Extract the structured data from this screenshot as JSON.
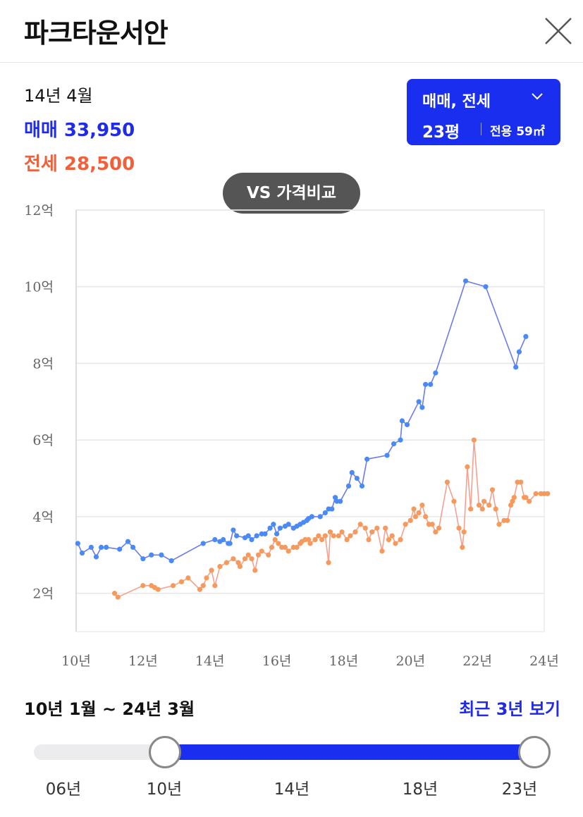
{
  "header": {
    "title": "파크타운서안"
  },
  "info": {
    "date": "14년 4월",
    "sale": "매매 33,950",
    "jeonse": "전세 28,500"
  },
  "selector": {
    "type_label": "매매, 전세",
    "size_label": "23평",
    "area_label": "전용 59㎡"
  },
  "vs_button": "VS 가격비교",
  "colors": {
    "accent": "#1a2ef0",
    "sale_line": "#6b7bec",
    "sale_point": "#4a8af5",
    "jeonse_line": "#f4a18f",
    "jeonse_point": "#f59a5c"
  },
  "chart_data": {
    "type": "line",
    "ylim": [
      1,
      12
    ],
    "y_ticks": [
      2,
      4,
      6,
      8,
      10,
      12
    ],
    "y_tick_labels": [
      "2억",
      "4억",
      "6억",
      "8억",
      "10억",
      "12억"
    ],
    "x_ticks": [
      10,
      12,
      14,
      16,
      18,
      20,
      22,
      24
    ],
    "x_tick_labels": [
      "10년",
      "12년",
      "14년",
      "16년",
      "18년",
      "20년",
      "22년",
      "24년"
    ],
    "xlim": [
      10,
      24
    ],
    "grid": true,
    "series": [
      {
        "name": "매매",
        "x": [
          10.05,
          10.18,
          10.45,
          10.6,
          10.75,
          10.9,
          11.3,
          11.55,
          11.7,
          12.0,
          12.25,
          12.55,
          12.85,
          13.8,
          14.15,
          14.3,
          14.4,
          14.55,
          14.6,
          14.7,
          14.8,
          15.05,
          15.15,
          15.25,
          15.4,
          15.55,
          15.65,
          15.8,
          15.9,
          16.0,
          16.1,
          16.25,
          16.35,
          16.5,
          16.6,
          16.7,
          16.8,
          16.9,
          16.95,
          17.05,
          17.3,
          17.45,
          17.55,
          17.65,
          17.75,
          17.8,
          17.9,
          18.15,
          18.25,
          18.4,
          18.55,
          18.7,
          19.3,
          19.5,
          19.7,
          19.75,
          19.9,
          20.25,
          20.35,
          20.45,
          20.6,
          20.75,
          21.65,
          22.25,
          23.15,
          23.25,
          23.45
        ],
        "values": [
          3.3,
          3.05,
          3.2,
          2.95,
          3.2,
          3.2,
          3.15,
          3.35,
          3.2,
          2.9,
          3.0,
          3.0,
          2.85,
          3.3,
          3.4,
          3.35,
          3.4,
          3.3,
          3.3,
          3.65,
          3.5,
          3.45,
          3.5,
          3.4,
          3.5,
          3.55,
          3.55,
          3.7,
          3.8,
          3.55,
          3.7,
          3.75,
          3.8,
          3.7,
          3.75,
          3.8,
          3.85,
          3.9,
          3.95,
          4.0,
          4.0,
          4.1,
          4.2,
          4.2,
          4.5,
          4.4,
          4.4,
          4.8,
          5.15,
          5.0,
          4.8,
          5.5,
          5.6,
          5.9,
          6.0,
          6.5,
          6.4,
          7.0,
          6.85,
          7.45,
          7.45,
          7.75,
          10.15,
          10.0,
          7.9,
          8.3,
          8.7
        ]
      },
      {
        "name": "전세",
        "x": [
          11.15,
          11.25,
          12.0,
          12.25,
          12.35,
          12.45,
          12.9,
          13.15,
          13.35,
          13.7,
          13.8,
          13.9,
          14.05,
          14.15,
          14.3,
          14.5,
          14.7,
          14.85,
          14.9,
          15.05,
          15.15,
          15.25,
          15.35,
          15.45,
          15.55,
          15.75,
          15.85,
          15.95,
          16.05,
          16.15,
          16.25,
          16.35,
          16.5,
          16.6,
          16.7,
          16.75,
          16.85,
          16.95,
          17.0,
          17.15,
          17.25,
          17.35,
          17.45,
          17.55,
          17.6,
          17.7,
          17.85,
          17.95,
          18.1,
          18.2,
          18.35,
          18.5,
          18.65,
          18.75,
          18.85,
          19.0,
          19.15,
          19.25,
          19.35,
          19.45,
          19.55,
          19.7,
          19.85,
          20.0,
          20.1,
          20.15,
          20.25,
          20.35,
          20.45,
          20.55,
          20.65,
          20.75,
          20.85,
          21.1,
          21.3,
          21.45,
          21.55,
          21.6,
          21.7,
          21.8,
          21.9,
          22.05,
          22.15,
          22.2,
          22.35,
          22.45,
          22.55,
          22.65,
          22.8,
          22.9,
          23.0,
          23.05,
          23.1,
          23.2,
          23.3,
          23.4,
          23.45,
          23.55,
          23.75,
          23.9,
          24.0,
          24.1
        ],
        "values": [
          2.0,
          1.9,
          2.2,
          2.2,
          2.15,
          2.1,
          2.2,
          2.3,
          2.4,
          2.1,
          2.2,
          2.4,
          2.6,
          2.2,
          2.7,
          2.8,
          2.9,
          2.8,
          2.7,
          2.9,
          3.0,
          2.9,
          2.6,
          3.0,
          3.1,
          3.0,
          3.2,
          3.4,
          3.3,
          3.2,
          3.2,
          3.1,
          3.2,
          3.2,
          3.3,
          3.35,
          3.4,
          3.4,
          3.3,
          3.4,
          3.5,
          3.4,
          3.5,
          2.8,
          3.6,
          3.5,
          3.5,
          3.6,
          3.4,
          3.5,
          3.6,
          3.8,
          3.7,
          3.4,
          3.6,
          3.7,
          3.1,
          3.7,
          3.4,
          3.5,
          3.3,
          3.4,
          3.8,
          3.9,
          4.2,
          4.0,
          4.1,
          4.3,
          4.0,
          3.8,
          3.8,
          3.6,
          3.7,
          4.9,
          4.4,
          3.7,
          3.2,
          3.6,
          5.3,
          4.2,
          6.0,
          4.3,
          4.2,
          4.4,
          4.3,
          4.7,
          4.2,
          3.8,
          3.9,
          3.9,
          4.3,
          4.4,
          4.5,
          4.9,
          4.9,
          4.5,
          4.5,
          4.4,
          4.6,
          4.6,
          4.6,
          4.6
        ]
      }
    ]
  },
  "range": {
    "label": "10년 1월 ~ 24년 3월",
    "recent_link": "최근 3년 보기",
    "ticks": [
      "06년",
      "10년",
      "14년",
      "18년",
      "23년"
    ],
    "start_fraction": 0.23,
    "end_fraction": 1.0
  }
}
